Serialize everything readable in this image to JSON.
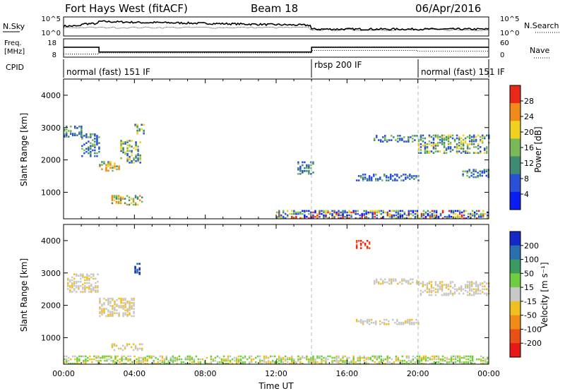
{
  "header": {
    "station": "Fort Hays West (fitACF)",
    "beam": "Beam 18",
    "date": "06/Apr/2016"
  },
  "noise_panel": {
    "left_label": "N.Sky",
    "right_label": "N.Search",
    "left_ticks": [
      "10^5",
      "10^0"
    ],
    "right_ticks": [
      "10^5",
      "10^0"
    ]
  },
  "freq_panel": {
    "left_label_line1": "Freq.",
    "left_label_line2": "[MHz]",
    "right_label": "Nave",
    "left_ticks": [
      "18",
      "8"
    ],
    "right_ticks": [
      "60",
      "0"
    ],
    "freq_steps": [
      {
        "t": 0.0,
        "mhz": 13.4
      },
      {
        "t": 2.0,
        "mhz": 10.8
      },
      {
        "t": 14.0,
        "mhz": 13.4
      }
    ],
    "nave_steps": [
      {
        "t": 0.0,
        "nave": 10
      },
      {
        "t": 2.0,
        "nave": 14
      },
      {
        "t": 14.0,
        "nave": 22
      },
      {
        "t": 20.0,
        "nave": 20
      }
    ]
  },
  "cpid_panel": {
    "label": "CPID",
    "segments": [
      {
        "start": 0,
        "label": "normal (fast) 151 IF"
      },
      {
        "start": 14,
        "label": "rbsp 200 IF"
      },
      {
        "start": 20,
        "label": "normal (fast) 151 IF"
      }
    ]
  },
  "x_axis": {
    "label": "Time UT",
    "ticks": [
      "00:00",
      "04:00",
      "08:00",
      "12:00",
      "16:00",
      "20:00",
      "00:00"
    ],
    "tick_hours": [
      0,
      4,
      8,
      12,
      16,
      20,
      24
    ],
    "range": [
      0,
      24
    ],
    "mode_boundaries": [
      14,
      20
    ]
  },
  "power_panel": {
    "ylabel": "Slant Range [km]",
    "yticks": [
      "1000",
      "2000",
      "3000",
      "4000"
    ],
    "ytick_values": [
      1000,
      2000,
      3000,
      4000
    ],
    "ylim": [
      180,
      4500
    ],
    "colorbar_label": "Power [dB]",
    "colorbar_ticks": [
      "4",
      "8",
      "12",
      "16",
      "20",
      "24",
      "28"
    ],
    "colorbar_colors": [
      "#0b1cf0",
      "#2a50d8",
      "#3f8a72",
      "#7ab858",
      "#f0d020",
      "#f08a18",
      "#e82818"
    ]
  },
  "velocity_panel": {
    "ylabel": "Slant Range [km]",
    "yticks": [
      "1000",
      "2000",
      "3000",
      "4000"
    ],
    "ytick_values": [
      1000,
      2000,
      3000,
      4000
    ],
    "ylim": [
      180,
      4500
    ],
    "colorbar_label": "Velocity [m s⁻¹]",
    "colorbar_ticks": [
      "200",
      "100",
      "50",
      "15",
      "-15",
      "-50",
      "-100",
      "-200"
    ],
    "colorbar_colors": [
      "#1428c8",
      "#2a70b0",
      "#3a9a60",
      "#70cc40",
      "#c8c8c8",
      "#f0c020",
      "#f08a18",
      "#e85018",
      "#e81818"
    ]
  },
  "chart_data": {
    "type": "heatmap",
    "x_unit": "hours UT",
    "y_unit": "km",
    "power_regions": [
      {
        "t0": 0.0,
        "t1": 1.0,
        "r0": 2700,
        "r1": 3050,
        "level": "low"
      },
      {
        "t0": 1.0,
        "t1": 2.0,
        "r0": 2100,
        "r1": 2800,
        "level": "low"
      },
      {
        "t0": 2.0,
        "t1": 3.2,
        "r0": 1650,
        "r1": 1950,
        "level": "high"
      },
      {
        "t0": 3.2,
        "t1": 4.3,
        "r0": 1900,
        "r1": 2600,
        "level": "mid"
      },
      {
        "t0": 4.0,
        "t1": 4.5,
        "r0": 2800,
        "r1": 3100,
        "level": "mid"
      },
      {
        "t0": 2.7,
        "t1": 4.4,
        "r0": 600,
        "r1": 900,
        "level": "high"
      },
      {
        "t0": 13.2,
        "t1": 14.1,
        "r0": 1550,
        "r1": 1950,
        "level": "low"
      },
      {
        "t0": 16.5,
        "t1": 20.0,
        "r0": 1350,
        "r1": 1550,
        "level": "low"
      },
      {
        "t0": 17.5,
        "t1": 20.0,
        "r0": 2550,
        "r1": 2750,
        "level": "low"
      },
      {
        "t0": 20.0,
        "t1": 24.0,
        "r0": 2200,
        "r1": 2750,
        "level": "mid"
      },
      {
        "t0": 22.5,
        "t1": 24.0,
        "r0": 1450,
        "r1": 1700,
        "level": "low"
      },
      {
        "t0": 12.0,
        "t1": 24.0,
        "r0": 180,
        "r1": 420,
        "level": "ground"
      }
    ],
    "velocity_regions": [
      {
        "t0": 0.2,
        "t1": 2.0,
        "r0": 2400,
        "r1": 2950,
        "vel": "zero"
      },
      {
        "t0": 2.0,
        "t1": 4.0,
        "r0": 1650,
        "r1": 2200,
        "vel": "zero"
      },
      {
        "t0": 4.0,
        "t1": 4.3,
        "r0": 2950,
        "r1": 3300,
        "vel": "high_pos"
      },
      {
        "t0": 2.7,
        "t1": 4.4,
        "r0": 600,
        "r1": 800,
        "vel": "zero"
      },
      {
        "t0": 16.5,
        "t1": 17.3,
        "r0": 3750,
        "r1": 4000,
        "vel": "high_neg"
      },
      {
        "t0": 17.5,
        "t1": 20.0,
        "r0": 2650,
        "r1": 2800,
        "vel": "zero"
      },
      {
        "t0": 20.0,
        "t1": 24.0,
        "r0": 2300,
        "r1": 2750,
        "vel": "zero"
      },
      {
        "t0": 16.5,
        "t1": 20.0,
        "r0": 1400,
        "r1": 1550,
        "vel": "zero"
      },
      {
        "t0": 0.0,
        "t1": 24.0,
        "r0": 180,
        "r1": 420,
        "vel": "ground"
      }
    ]
  }
}
